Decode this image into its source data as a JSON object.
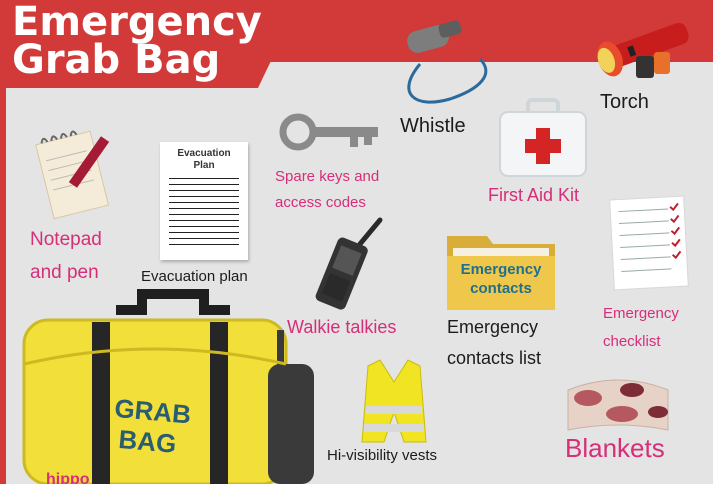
{
  "title": {
    "line1": "Emergency",
    "line2": "Grab Bag"
  },
  "items": {
    "whistle": "Whistle",
    "torch": "Torch",
    "first_aid": "First Aid Kit",
    "spare_keys_line1": "Spare keys and",
    "spare_keys_line2": "access codes",
    "notepad_line1": "Notepad",
    "notepad_line2": "and pen",
    "evac_plan": "Evacuation plan",
    "walkie": "Walkie talkies",
    "contacts_line1": "Emergency",
    "contacts_line2": "contacts list",
    "checklist_line1": "Emergency",
    "checklist_line2": "checklist",
    "vests": "Hi-visibility vests",
    "blankets": "Blankets"
  },
  "evac_doc": {
    "line1": "Evacuation",
    "line2": "Plan"
  },
  "folder": {
    "line1": "Emergency",
    "line2": "contacts"
  },
  "bag": {
    "line1": "GRAB",
    "line2": "BAG"
  },
  "logo_partial": "hippo",
  "colors": {
    "red": "#d13a39",
    "pink": "#d62e79",
    "bag_yellow": "#f2df3a",
    "background": "#e4e4e4"
  }
}
